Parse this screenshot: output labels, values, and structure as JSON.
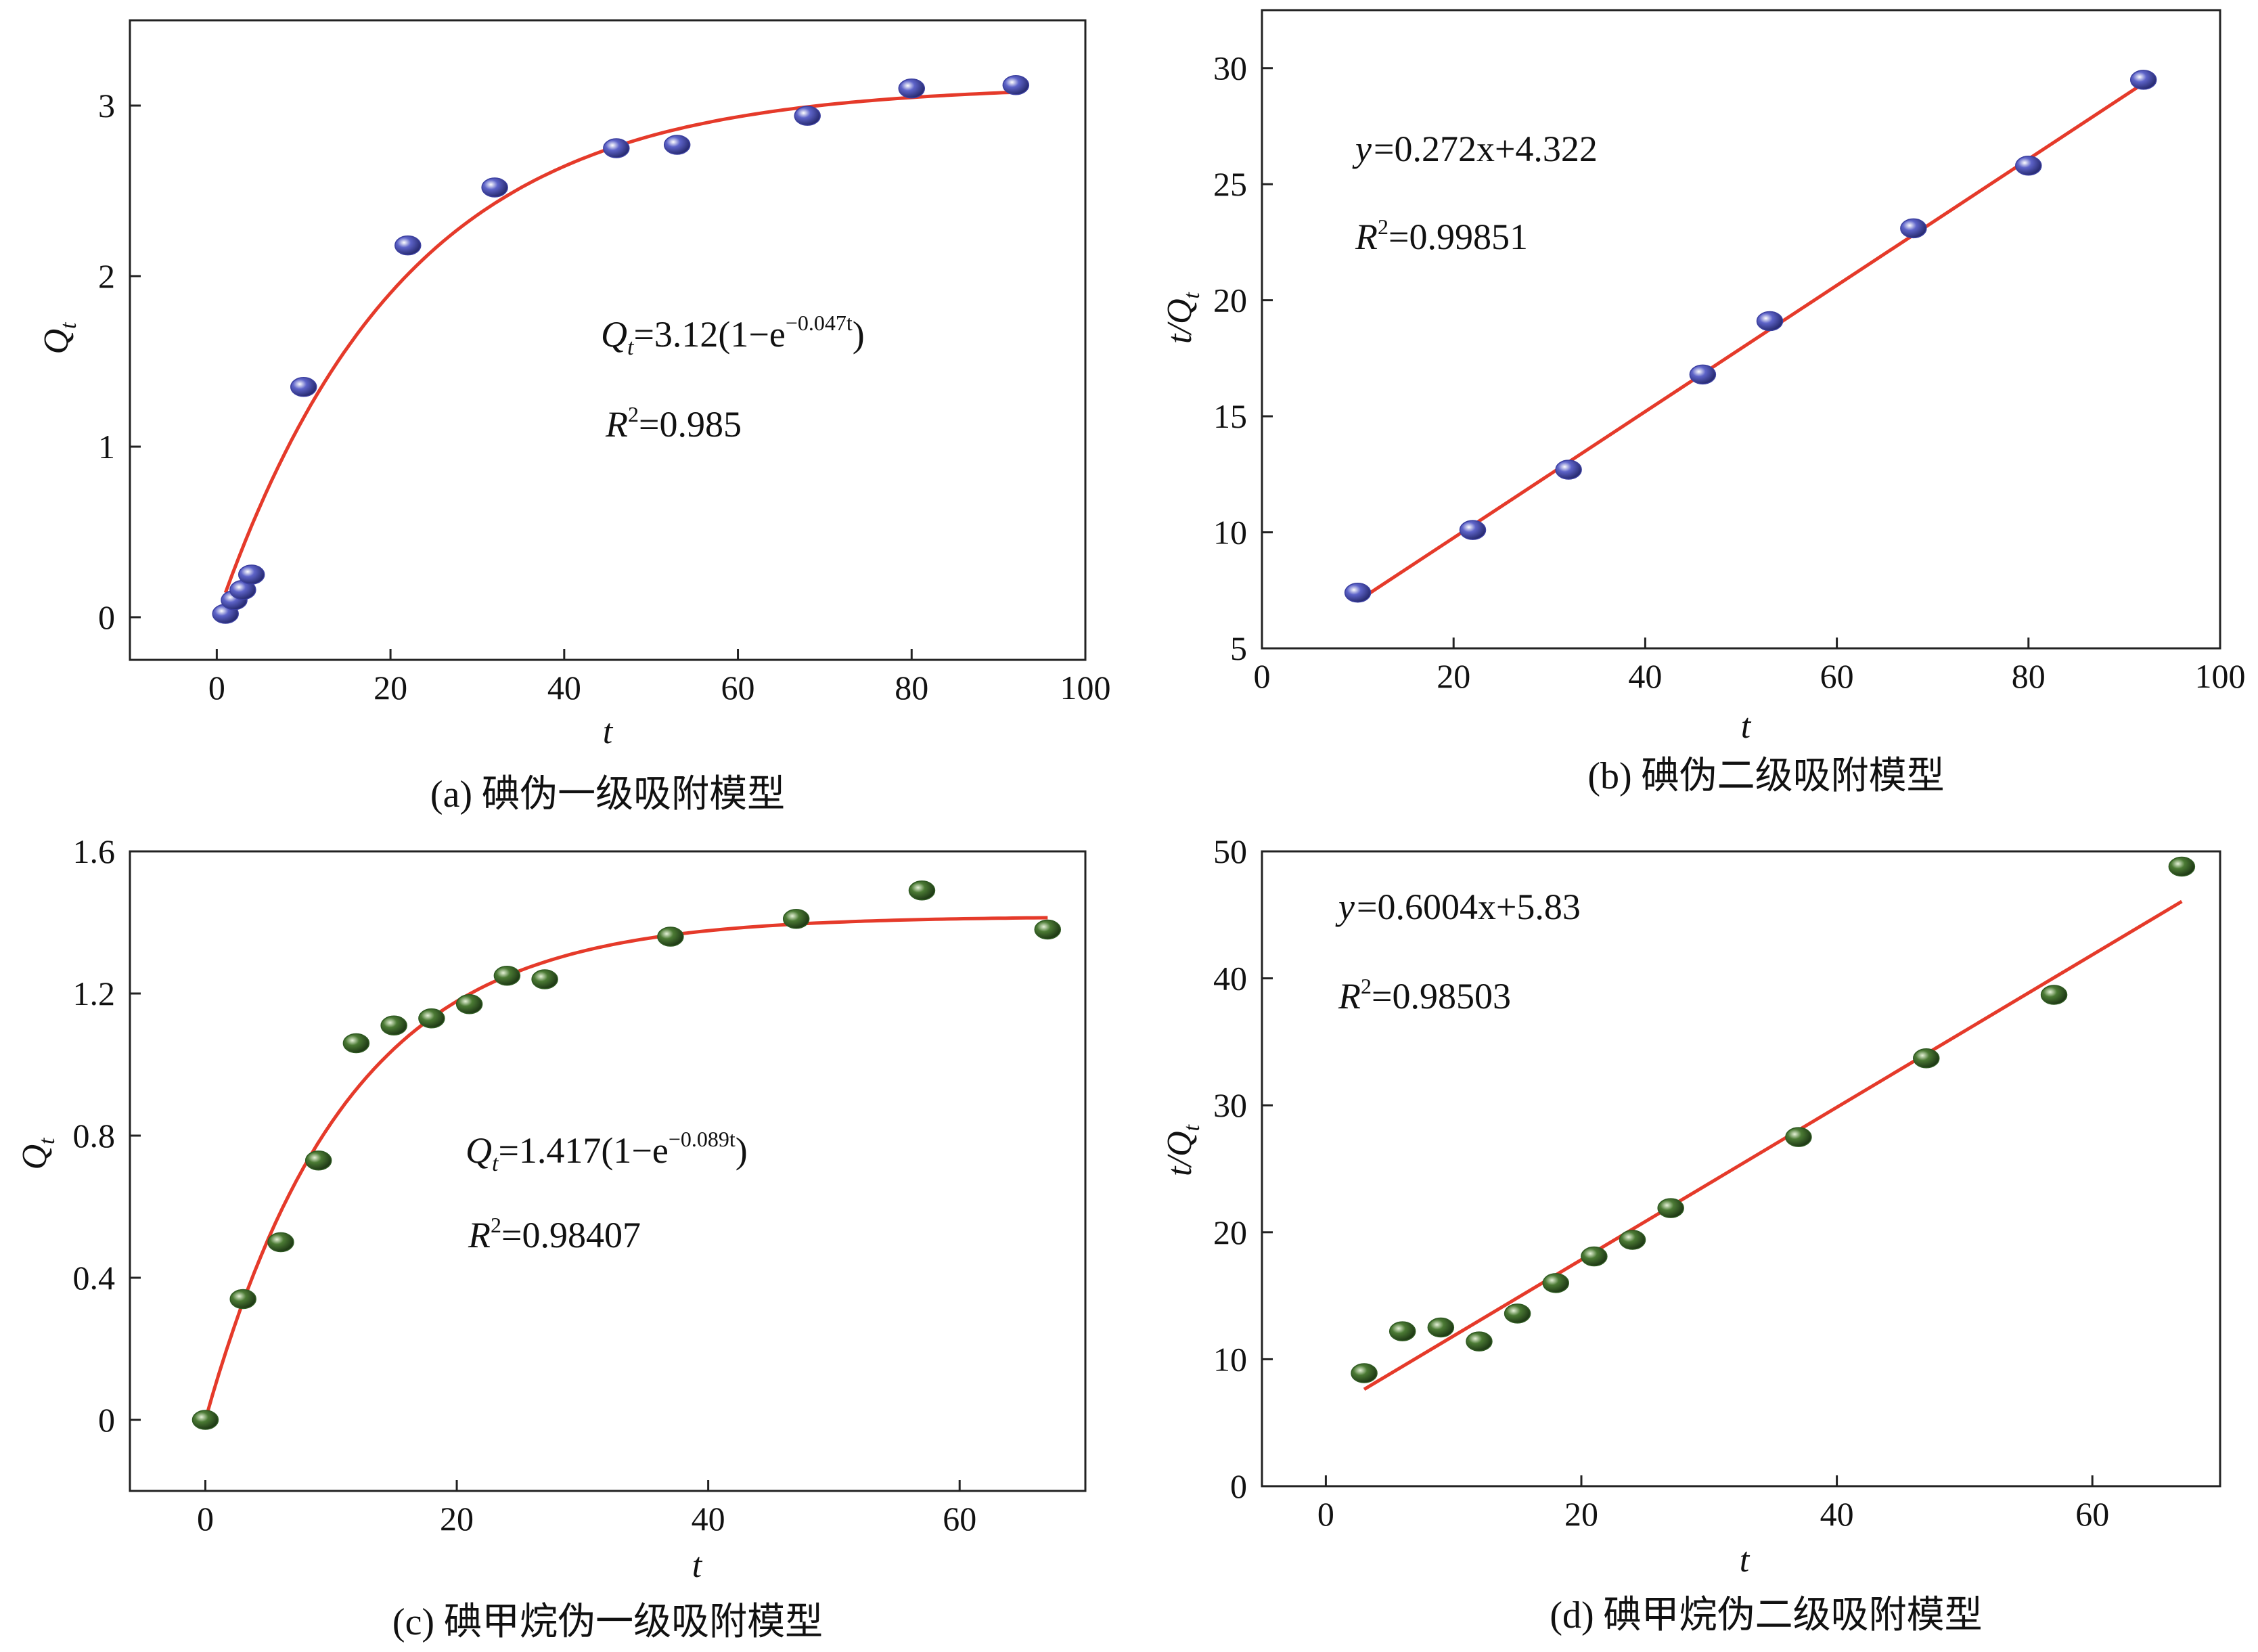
{
  "chart_data": [
    {
      "id": "a",
      "type": "scatter",
      "caption": "(a) 碘伪一级吸附模型",
      "xlabel": "t",
      "ylabel": "Q",
      "ylabel_sub": "t",
      "xlim": [
        -10,
        100
      ],
      "ylim": [
        -0.25,
        3.5
      ],
      "xticks": [
        0,
        20,
        40,
        60,
        80,
        100
      ],
      "yticks": [
        0,
        1,
        2,
        3
      ],
      "point_color": "#3b3fa0",
      "fit_color": "#e53a2a",
      "fit": {
        "model": "pfo",
        "qe": 3.12,
        "k": 0.047,
        "x_from": 1,
        "x_to": 92
      },
      "x": [
        1,
        2,
        3,
        4,
        10,
        22,
        32,
        46,
        53,
        68,
        80,
        92
      ],
      "y": [
        0.02,
        0.1,
        0.16,
        0.25,
        1.35,
        2.18,
        2.52,
        2.75,
        2.77,
        2.94,
        3.1,
        3.12
      ],
      "equation": {
        "lhs": "Q",
        "lhs_sub": "t",
        "body": "=3.12(1−e",
        "exp": "−0.047t",
        "tail": ")"
      },
      "r2": {
        "label": "R",
        "sup": "2",
        "value": "=0.985"
      }
    },
    {
      "id": "b",
      "type": "scatter",
      "caption": "(b) 碘伪二级吸附模型",
      "xlabel": "t",
      "ylabel": "t/Q",
      "ylabel_sub": "t",
      "xlim": [
        0,
        100
      ],
      "ylim": [
        5,
        32.5
      ],
      "xticks": [
        0,
        20,
        40,
        60,
        80,
        100
      ],
      "yticks": [
        5,
        10,
        15,
        20,
        25,
        30
      ],
      "point_color": "#3b3fa0",
      "fit_color": "#e53a2a",
      "fit": {
        "model": "linear",
        "slope": 0.272,
        "intercept": 4.322,
        "x_from": 10,
        "x_to": 92
      },
      "x": [
        10,
        22,
        32,
        46,
        53,
        68,
        80,
        92
      ],
      "y": [
        7.4,
        10.1,
        12.7,
        16.8,
        19.1,
        23.1,
        25.8,
        29.5
      ],
      "equation": {
        "lhs": "y",
        "body": "=0.272x+4.322"
      },
      "r2": {
        "label": "R",
        "sup": "2",
        "value": "=0.99851"
      }
    },
    {
      "id": "c",
      "type": "scatter",
      "caption": "(c) 碘甲烷伪一级吸附模型",
      "xlabel": "t",
      "ylabel": "Q",
      "ylabel_sub": "t",
      "xlim": [
        -6,
        70
      ],
      "ylim": [
        -0.2,
        1.6
      ],
      "xticks": [
        0,
        20,
        40,
        60
      ],
      "yticks": [
        0,
        0.4,
        0.8,
        1.2,
        1.6
      ],
      "ytick_labels": [
        "0",
        "0.4",
        "0.8",
        "1.2",
        "1.6"
      ],
      "point_color": "#2f5a22",
      "fit_color": "#e53a2a",
      "fit": {
        "model": "pfo",
        "qe": 1.417,
        "k": 0.089,
        "x_from": 0,
        "x_to": 67
      },
      "x": [
        0,
        3,
        6,
        9,
        12,
        15,
        18,
        21,
        24,
        27,
        37,
        47,
        57,
        67
      ],
      "y": [
        0.0,
        0.34,
        0.5,
        0.73,
        1.06,
        1.11,
        1.13,
        1.17,
        1.25,
        1.24,
        1.36,
        1.41,
        1.49,
        1.38
      ],
      "equation": {
        "lhs": "Q",
        "lhs_sub": "t",
        "body": "=1.417(1−e",
        "exp": "−0.089t",
        "tail": ")"
      },
      "r2": {
        "label": "R",
        "sup": "2",
        "value": "=0.98407"
      }
    },
    {
      "id": "d",
      "type": "scatter",
      "caption": "(d) 碘甲烷伪二级吸附模型",
      "xlabel": "t",
      "ylabel": "t/Q",
      "ylabel_sub": "t",
      "xlim": [
        -5,
        70
      ],
      "ylim": [
        0,
        50
      ],
      "xticks": [
        0,
        20,
        40,
        60
      ],
      "yticks": [
        0,
        10,
        20,
        30,
        40,
        50
      ],
      "point_color": "#2f5a22",
      "fit_color": "#e53a2a",
      "fit": {
        "model": "linear",
        "slope": 0.6004,
        "intercept": 5.83,
        "x_from": 3,
        "x_to": 67
      },
      "x": [
        3,
        6,
        9,
        12,
        15,
        18,
        21,
        24,
        27,
        37,
        47,
        57,
        67
      ],
      "y": [
        8.9,
        12.2,
        12.5,
        11.4,
        13.6,
        16.0,
        18.1,
        19.4,
        21.9,
        27.5,
        33.7,
        38.7,
        48.8
      ],
      "equation": {
        "lhs": "y",
        "body": "=0.6004x+5.83"
      },
      "r2": {
        "label": "R",
        "sup": "2",
        "value": "=0.98503"
      }
    }
  ]
}
